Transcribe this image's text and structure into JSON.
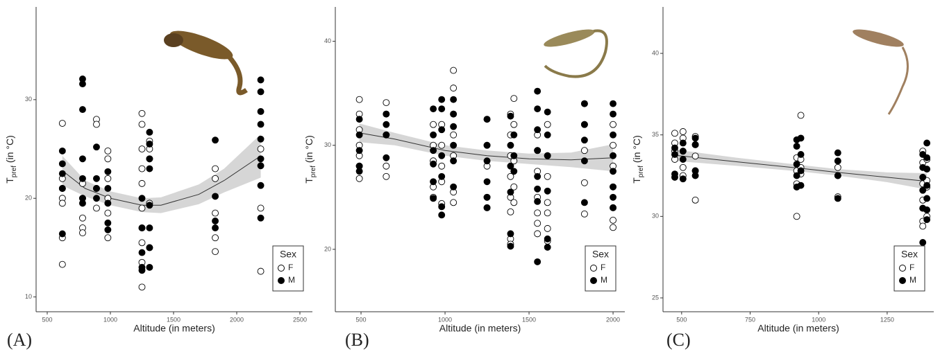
{
  "chart_data": [
    {
      "type": "scatter",
      "panel_label": "(A)",
      "xlabel": "Altitude (in meters)",
      "ylabel": [
        "T",
        "pref",
        " (in °C)"
      ],
      "xlim": [
        412,
        2599
      ],
      "ylim": [
        8.5,
        39.4
      ],
      "xticks": [
        500,
        1000,
        1500,
        2000,
        2500
      ],
      "yticks": [
        10,
        20,
        30
      ],
      "legend_title": "Sex",
      "legend": "bottom-right",
      "series": [
        {
          "name": "F",
          "color": "#000000",
          "filled": false,
          "x": [
            620,
            620,
            620,
            620,
            620,
            620,
            620,
            780,
            780,
            780,
            780,
            780,
            890,
            890,
            890,
            890,
            980,
            980,
            980,
            980,
            980,
            980,
            1250,
            1250,
            1250,
            1250,
            1250,
            1250,
            1250,
            1250,
            1250,
            1250,
            1310,
            1310,
            1310,
            1310,
            1310,
            1830,
            1830,
            1830,
            1830,
            1830,
            2190,
            2190,
            2190
          ],
          "values": [
            27.6,
            22,
            21,
            20,
            19.5,
            16,
            13.3,
            21.5,
            20,
            18,
            17,
            16.5,
            28,
            27.5,
            21,
            19,
            24.8,
            24,
            22,
            20,
            18.5,
            16,
            28.6,
            27.5,
            25,
            23,
            21.5,
            19,
            17,
            15.5,
            13.5,
            11,
            25.8,
            25,
            24,
            19.5,
            15,
            23,
            22,
            18.5,
            16,
            14.6,
            25,
            19,
            12.6
          ]
        },
        {
          "name": "M",
          "color": "#000000",
          "filled": true,
          "x": [
            620,
            620,
            620,
            620,
            620,
            780,
            780,
            780,
            780,
            780,
            780,
            780,
            890,
            890,
            890,
            890,
            980,
            980,
            980,
            980,
            980,
            1250,
            1250,
            1250,
            1250,
            1250,
            1310,
            1310,
            1310,
            1310,
            1310,
            1310,
            1310,
            1310,
            1830,
            1830,
            1830,
            1830,
            2190,
            2190,
            2190,
            2190,
            2190,
            2190,
            2190,
            2190,
            2190
          ],
          "values": [
            24.8,
            23.5,
            22.5,
            21,
            16.4,
            32.1,
            31.6,
            29,
            24,
            22,
            20,
            19.5,
            25.2,
            22,
            21,
            20,
            22.7,
            21,
            19.5,
            17.5,
            16.8,
            20,
            17,
            14.5,
            13,
            12.7,
            26.7,
            25.5,
            24,
            23,
            19.3,
            17,
            15,
            13,
            25.9,
            20.2,
            17.7,
            17,
            32,
            30.8,
            28.8,
            27.5,
            26,
            24,
            23.3,
            21.3,
            18
          ]
        }
      ],
      "trend": {
        "x": [
          620,
          800,
          1000,
          1250,
          1400,
          1700,
          1900,
          2190
        ],
        "y": [
          22.8,
          21,
          20,
          19.3,
          19.3,
          20.4,
          21.8,
          24.3
        ],
        "lower": [
          21.3,
          20.2,
          19.3,
          18.6,
          18.5,
          19.4,
          20.6,
          22.1
        ],
        "upper": [
          24.3,
          21.8,
          20.7,
          20,
          20.1,
          21.4,
          23,
          26.5
        ]
      }
    },
    {
      "type": "scatter",
      "panel_label": "(B)",
      "xlabel": "Altitude (in meters)",
      "ylabel": [
        "T",
        "pref",
        " (in °C)"
      ],
      "xlim": [
        347,
        2070
      ],
      "ylim": [
        14,
        43.3
      ],
      "xticks": [
        500,
        1000,
        1500,
        2000
      ],
      "yticks": [
        20,
        30,
        40
      ],
      "legend_title": "Sex",
      "legend": "bottom-right",
      "series": [
        {
          "name": "F",
          "color": "#000000",
          "filled": false,
          "x": [
            490,
            490,
            490,
            490,
            490,
            490,
            490,
            650,
            650,
            650,
            650,
            650,
            930,
            930,
            930,
            930,
            930,
            980,
            980,
            980,
            980,
            980,
            1050,
            1050,
            1050,
            1050,
            1050,
            1050,
            1050,
            1250,
            1250,
            1250,
            1250,
            1250,
            1390,
            1390,
            1390,
            1390,
            1390,
            1390,
            1390,
            1390,
            1410,
            1410,
            1410,
            1410,
            1410,
            1550,
            1550,
            1550,
            1550,
            1550,
            1550,
            1550,
            1610,
            1610,
            1610,
            1610,
            1610,
            1610,
            1610,
            1830,
            1830,
            1830,
            1830,
            1830,
            2000,
            2000,
            2000,
            2000,
            2000,
            2000,
            2000
          ],
          "values": [
            34.4,
            33,
            31.5,
            30,
            29,
            28,
            26.8,
            34.1,
            33,
            31,
            28,
            27,
            32,
            30,
            28.5,
            26,
            25,
            32,
            30,
            28,
            26.5,
            24.4,
            37.2,
            35.5,
            33,
            31,
            29,
            25.5,
            24.5,
            32.5,
            30,
            28,
            25,
            24,
            33,
            31,
            29,
            27,
            25,
            23.6,
            21,
            20.5,
            34.5,
            32,
            28.5,
            26,
            24.5,
            31,
            29.5,
            27.5,
            25,
            23.5,
            22.5,
            21.5,
            32,
            29,
            27,
            24.5,
            23.5,
            22,
            20.8,
            34,
            32,
            29.5,
            26.4,
            23.4,
            32,
            30,
            28,
            26,
            24,
            22.8,
            22.1
          ]
        },
        {
          "name": "M",
          "color": "#000000",
          "filled": true,
          "x": [
            490,
            490,
            490,
            490,
            490,
            650,
            650,
            650,
            650,
            930,
            930,
            930,
            930,
            930,
            930,
            980,
            980,
            980,
            980,
            980,
            980,
            980,
            1050,
            1050,
            1050,
            1050,
            1050,
            1050,
            1250,
            1250,
            1250,
            1250,
            1250,
            1250,
            1390,
            1390,
            1390,
            1390,
            1390,
            1390,
            1410,
            1410,
            1410,
            1550,
            1550,
            1550,
            1550,
            1550,
            1550,
            1550,
            1550,
            1610,
            1610,
            1610,
            1610,
            1610,
            1610,
            1830,
            1830,
            1830,
            1830,
            1830,
            2000,
            2000,
            2000,
            2000,
            2000,
            2000,
            2000,
            2000
          ],
          "values": [
            32.5,
            31,
            29.5,
            28,
            27.5,
            33,
            32,
            31,
            28.8,
            33.5,
            31,
            29.5,
            28.2,
            26.5,
            24.9,
            34.4,
            33.5,
            31.5,
            29,
            27,
            24.1,
            23.3,
            34.4,
            33,
            31.8,
            30,
            28.5,
            26,
            32.5,
            30,
            28.5,
            26.5,
            25,
            24,
            32.8,
            30,
            28,
            25.5,
            21.5,
            20.3,
            31,
            29,
            27.5,
            35.2,
            33.5,
            31.5,
            29.5,
            27,
            25.8,
            24.6,
            18.8,
            33.2,
            31,
            29,
            25.6,
            21,
            20.2,
            34,
            32,
            30.5,
            28.5,
            24.5,
            34,
            33,
            31,
            29,
            27.5,
            26,
            25,
            24
          ]
        }
      ],
      "trend": {
        "x": [
          490,
          700,
          1000,
          1250,
          1500,
          1750,
          2000
        ],
        "y": [
          31.2,
          30.6,
          29.5,
          29,
          28.7,
          28.6,
          28.8
        ],
        "lower": [
          30.3,
          30,
          29,
          28.5,
          28.2,
          27.9,
          27.5
        ],
        "upper": [
          32.1,
          31.2,
          30,
          29.5,
          29.2,
          29.3,
          30.1
        ]
      }
    },
    {
      "type": "scatter",
      "panel_label": "(C)",
      "xlabel": "Altitude (in meters)",
      "ylabel": [
        "T",
        "pref",
        " (in °C)"
      ],
      "xlim": [
        432,
        1420
      ],
      "ylim": [
        24.15,
        42.85
      ],
      "xticks": [
        500,
        750,
        1000,
        1250
      ],
      "yticks": [
        25,
        30,
        35,
        40
      ],
      "legend_title": "Sex",
      "legend": "bottom-right",
      "series": [
        {
          "name": "F",
          "color": "#000000",
          "filled": false,
          "x": [
            475,
            475,
            475,
            475,
            505,
            505,
            505,
            505,
            505,
            550,
            550,
            550,
            550,
            550,
            920,
            920,
            920,
            920,
            935,
            935,
            935,
            935,
            1070,
            1070,
            1070,
            1380,
            1380,
            1380,
            1380,
            1380,
            1380,
            1380,
            1395,
            1395,
            1395,
            1395
          ],
          "values": [
            35.1,
            34.5,
            34,
            33.5,
            35.2,
            34.8,
            34,
            33,
            32.5,
            34.9,
            34.4,
            33.7,
            32.8,
            31,
            33.6,
            32.8,
            32,
            30,
            36.2,
            33.5,
            33,
            32.6,
            33,
            32.5,
            31.2,
            34,
            33.3,
            32,
            31,
            30.5,
            29.7,
            29.4,
            33.5,
            32.2,
            31.8,
            30
          ]
        },
        {
          "name": "M",
          "color": "#000000",
          "filled": true,
          "x": [
            475,
            475,
            475,
            475,
            505,
            505,
            505,
            505,
            550,
            550,
            550,
            550,
            920,
            920,
            920,
            920,
            920,
            935,
            935,
            935,
            935,
            1070,
            1070,
            1070,
            1070,
            1380,
            1380,
            1380,
            1380,
            1380,
            1380,
            1395,
            1395,
            1395,
            1395,
            1395,
            1395,
            1395
          ],
          "values": [
            34.2,
            33.8,
            32.6,
            32.4,
            34.5,
            34,
            33.5,
            32.3,
            34.8,
            34.4,
            32.8,
            32.5,
            34.7,
            34.3,
            33.2,
            32.5,
            31.8,
            34.8,
            33.8,
            32.8,
            31.9,
            33.9,
            33.4,
            32.5,
            31.1,
            33.8,
            33,
            32.4,
            31.6,
            30.5,
            28.4,
            34.5,
            33.6,
            32.9,
            31.9,
            31.1,
            30.4,
            29.8
          ]
        }
      ],
      "trend": {
        "x": [
          475,
          700,
          935,
          1070,
          1250,
          1395
        ],
        "y": [
          33.75,
          33.35,
          32.95,
          32.7,
          32.4,
          32.15
        ],
        "lower": [
          33.4,
          33.1,
          32.75,
          32.5,
          32.1,
          31.65
        ],
        "upper": [
          34.1,
          33.6,
          33.15,
          32.9,
          32.7,
          32.65
        ]
      }
    }
  ]
}
